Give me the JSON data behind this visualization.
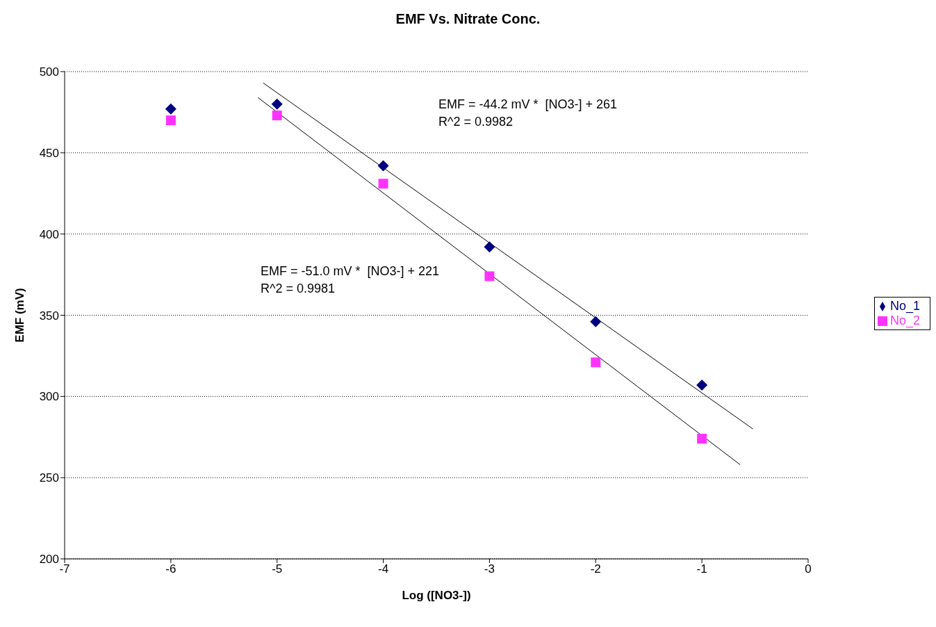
{
  "chart_data": {
    "type": "scatter",
    "title": "EMF Vs. Nitrate Conc.",
    "xlabel": "Log ([NO3-])",
    "ylabel": "EMF (mV)",
    "x": [
      -6,
      -5,
      -4,
      -3,
      -2,
      -1
    ],
    "series": [
      {
        "name": "No_1",
        "color": "#000080",
        "marker": "diamond",
        "values": [
          477,
          480,
          442,
          392,
          346,
          307
        ]
      },
      {
        "name": "No_2",
        "color": "#ff33ff",
        "marker": "square",
        "values": [
          470,
          473,
          431,
          374,
          321,
          274
        ]
      },
      {
        "type": "line",
        "color": "#000000",
        "x": [
          -5.13,
          -0.52
        ],
        "values": [
          493,
          280
        ]
      },
      {
        "type": "line",
        "color": "#000000",
        "x": [
          -5.18,
          -0.64
        ],
        "values": [
          484,
          258
        ]
      }
    ],
    "xlim": [
      -7,
      0
    ],
    "xticks": [
      -7,
      -6,
      -5,
      -4,
      -3,
      -2,
      -1,
      0
    ],
    "ylim": [
      200,
      500
    ],
    "yticks": [
      200,
      250,
      300,
      350,
      400,
      450,
      500
    ],
    "grid": "y",
    "legend": "right",
    "annotations": [
      "EMF = -44.2 mV *  [NO3-] + 261\nR^2 = 0.9982",
      "EMF = -51.0 mV *  [NO3-] + 221\nR^2 = 0.9981"
    ]
  }
}
